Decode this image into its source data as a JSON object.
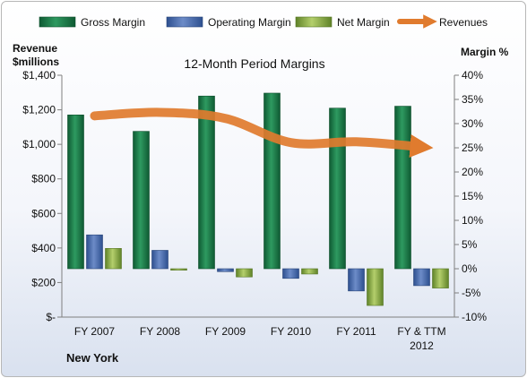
{
  "chart_data": {
    "type": "bar",
    "title": "12-Month Period Margins",
    "left_axis_label_line1": "Revenue",
    "left_axis_label_line2": "$millions",
    "right_axis_label": "Margin %",
    "footer_label": "New York",
    "categories": [
      {
        "line1": "FY 2007",
        "line2": ""
      },
      {
        "line1": "FY 2008",
        "line2": ""
      },
      {
        "line1": "FY 2009",
        "line2": ""
      },
      {
        "line1": "FY 2010",
        "line2": ""
      },
      {
        "line1": "FY 2011",
        "line2": ""
      },
      {
        "line1": "FY & TTM",
        "line2": "2012"
      }
    ],
    "left_axis": {
      "min": 0,
      "max": 1400,
      "step": 200,
      "tick_labels": [
        "$-",
        "$200",
        "$400",
        "$600",
        "$800",
        "$1,000",
        "$1,200",
        "$1,400"
      ]
    },
    "right_axis": {
      "min": -10,
      "max": 40,
      "step": 5,
      "tick_labels": [
        "-10%",
        "-5%",
        "0%",
        "5%",
        "10%",
        "15%",
        "20%",
        "25%",
        "30%",
        "35%",
        "40%"
      ]
    },
    "series": [
      {
        "name": "Gross Margin",
        "axis": "right",
        "values": [
          31.8,
          28.4,
          35.7,
          36.3,
          33.2,
          33.6
        ],
        "color": "#1e7b4a"
      },
      {
        "name": "Operating Margin",
        "axis": "right",
        "values": [
          7.0,
          3.8,
          -0.6,
          -2.0,
          -4.6,
          -3.5
        ],
        "color": "#4f6fae"
      },
      {
        "name": "Net Margin",
        "axis": "right",
        "values": [
          4.2,
          -0.3,
          -1.7,
          -1.1,
          -7.6,
          -4.0
        ],
        "color": "#8fb04a"
      }
    ],
    "line_series": {
      "name": "Revenues",
      "axis": "left",
      "values": [
        1165,
        1185,
        1150,
        1010,
        1015,
        985
      ],
      "color": "#e07b2e"
    },
    "legend_position": "top",
    "grid": false
  }
}
